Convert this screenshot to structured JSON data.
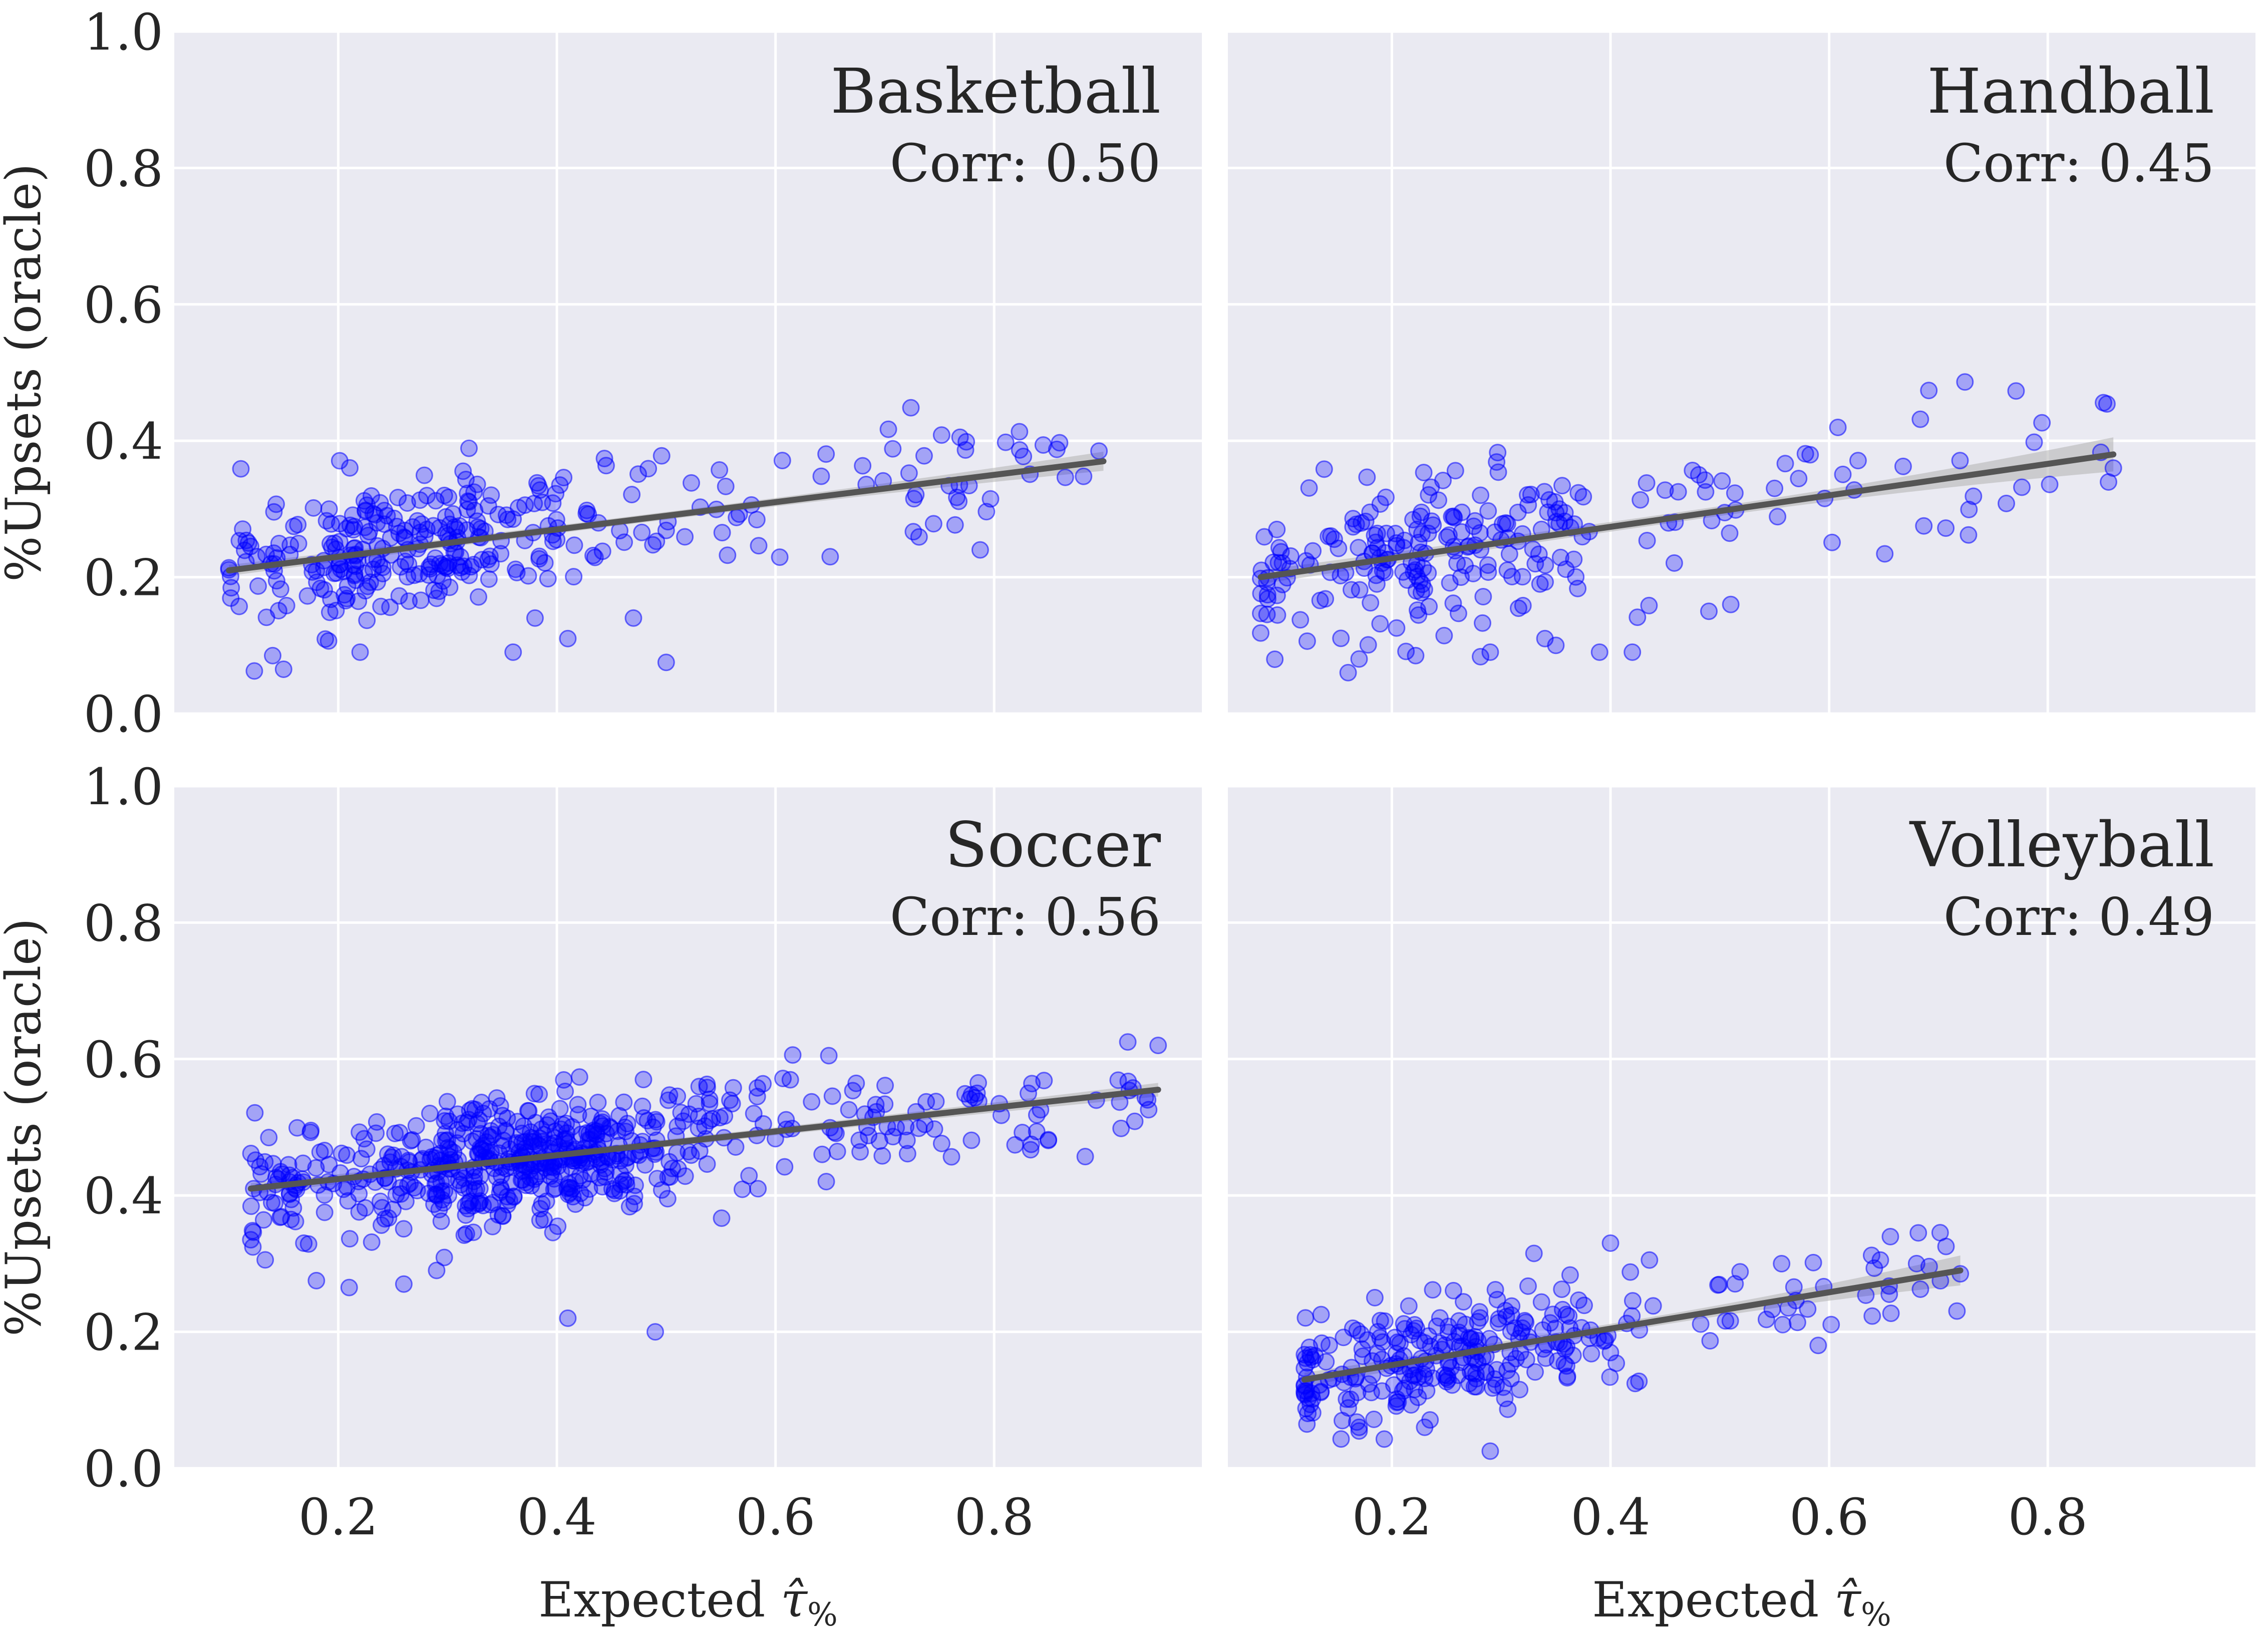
{
  "figure": {
    "xlabel_prefix": "Expected ",
    "xlabel_symbol": "τ̂",
    "xlabel_subscript": "%",
    "ylabel": "%Upsets (oracle)",
    "colors": {
      "panel_bg": "#eaeaf2",
      "grid": "#ffffff",
      "points": "#0000ff",
      "fit_line": "#555555",
      "ci_band": "#b0b0b0",
      "text": "#262626"
    },
    "x_ticks": [
      "0.2",
      "0.4",
      "0.6",
      "0.8"
    ],
    "y_ticks": [
      "0.0",
      "0.2",
      "0.4",
      "0.6",
      "0.8",
      "1.0"
    ]
  },
  "chart_data": [
    {
      "type": "scatter",
      "title": "Basketball",
      "subtitle": "Corr: 0.50",
      "xlabel": "",
      "ylabel": "%Upsets (oracle)",
      "xlim": [
        0.05,
        0.99
      ],
      "ylim": [
        0,
        1
      ],
      "grid": true,
      "sharex": true,
      "fit": {
        "x": [
          0.1,
          0.9
        ],
        "y": [
          0.21,
          0.37
        ]
      },
      "ci_halfwidth": [
        0.008,
        0.014
      ],
      "cluster": {
        "n": 330,
        "x_range": [
          0.1,
          0.9
        ],
        "x_mode": 0.27,
        "noise_sd": 0.048,
        "seed": 11
      },
      "outliers": [
        [
          0.14,
          0.085
        ],
        [
          0.15,
          0.065
        ],
        [
          0.5,
          0.075
        ],
        [
          0.41,
          0.11
        ],
        [
          0.47,
          0.14
        ],
        [
          0.36,
          0.09
        ],
        [
          0.22,
          0.09
        ],
        [
          0.65,
          0.23
        ],
        [
          0.38,
          0.14
        ]
      ]
    },
    {
      "type": "scatter",
      "title": "Handball",
      "subtitle": "Corr: 0.45",
      "xlabel": "Expected τ̂%",
      "ylabel": "",
      "xlim": [
        0.05,
        0.99
      ],
      "ylim": [
        0,
        1
      ],
      "grid": true,
      "sharex": true,
      "fit": {
        "x": [
          0.08,
          0.86
        ],
        "y": [
          0.2,
          0.38
        ]
      },
      "ci_halfwidth": [
        0.01,
        0.025
      ],
      "cluster": {
        "n": 250,
        "x_range": [
          0.08,
          0.86
        ],
        "x_mode": 0.25,
        "noise_sd": 0.055,
        "seed": 23
      },
      "outliers": [
        [
          0.16,
          0.06
        ],
        [
          0.17,
          0.08
        ],
        [
          0.39,
          0.09
        ],
        [
          0.42,
          0.09
        ],
        [
          0.34,
          0.11
        ],
        [
          0.29,
          0.09
        ],
        [
          0.49,
          0.15
        ],
        [
          0.51,
          0.16
        ],
        [
          0.86,
          0.36
        ],
        [
          0.35,
          0.1
        ]
      ]
    },
    {
      "type": "scatter",
      "title": "Soccer",
      "subtitle": "Corr: 0.56",
      "xlabel": "Expected τ̂%",
      "ylabel": "%Upsets (oracle)",
      "xlim": [
        0.05,
        0.99
      ],
      "ylim": [
        0,
        1
      ],
      "grid": true,
      "sharex": false,
      "fit": {
        "x": [
          0.12,
          0.95
        ],
        "y": [
          0.41,
          0.555
        ]
      },
      "ci_halfwidth": [
        0.008,
        0.01
      ],
      "cluster": {
        "n": 620,
        "x_range": [
          0.12,
          0.95
        ],
        "x_mode": 0.38,
        "noise_sd": 0.045,
        "seed": 37
      },
      "outliers": [
        [
          0.41,
          0.22
        ],
        [
          0.49,
          0.2
        ],
        [
          0.12,
          0.335
        ],
        [
          0.18,
          0.275
        ],
        [
          0.21,
          0.265
        ],
        [
          0.95,
          0.62
        ],
        [
          0.26,
          0.27
        ],
        [
          0.29,
          0.29
        ]
      ]
    },
    {
      "type": "scatter",
      "title": "Volleyball",
      "subtitle": "Corr: 0.49",
      "xlabel": "Expected τ̂%",
      "ylabel": "",
      "xlim": [
        0.05,
        0.99
      ],
      "ylim": [
        0,
        1
      ],
      "grid": true,
      "sharex": false,
      "fit": {
        "x": [
          0.12,
          0.72
        ],
        "y": [
          0.13,
          0.29
        ]
      },
      "ci_halfwidth": [
        0.01,
        0.022
      ],
      "cluster": {
        "n": 290,
        "x_range": [
          0.12,
          0.72
        ],
        "x_mode": 0.26,
        "noise_sd": 0.042,
        "seed": 53
      },
      "outliers": [
        [
          0.29,
          0.025
        ],
        [
          0.17,
          0.06
        ],
        [
          0.33,
          0.315
        ],
        [
          0.4,
          0.33
        ],
        [
          0.72,
          0.285
        ],
        [
          0.59,
          0.18
        ],
        [
          0.12,
          0.11
        ],
        [
          0.68,
          0.3
        ],
        [
          0.23,
          0.06
        ]
      ]
    }
  ]
}
